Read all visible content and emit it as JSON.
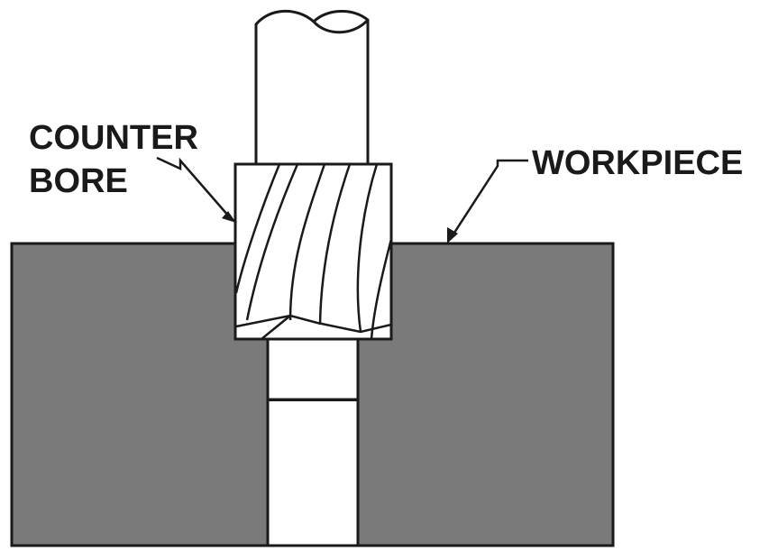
{
  "diagram": {
    "labels": {
      "counter_line1": "COUNTER",
      "counter_line2": "BORE",
      "workpiece": "WORKPIECE"
    },
    "colors": {
      "workpiece_fill": "#7a7a7a",
      "outline": "#1a1a1a",
      "background": "#ffffff"
    }
  }
}
